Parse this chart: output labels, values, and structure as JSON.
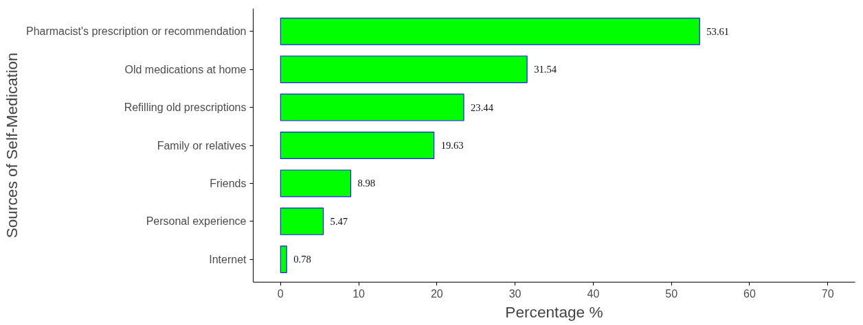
{
  "chart_data": {
    "type": "bar",
    "orientation": "horizontal",
    "xlabel": "Percentage %",
    "ylabel": "Sources of Self-Medication",
    "categories": [
      "Pharmacist's prescription or recommendation",
      "Old medications at home",
      "Refilling old prescriptions",
      "Family or relatives",
      "Friends",
      "Personal experience",
      "Internet"
    ],
    "values": [
      53.61,
      31.54,
      23.44,
      19.63,
      8.98,
      5.47,
      0.78
    ],
    "color": "#00ff00",
    "xlim": [
      -3.5,
      73.5
    ],
    "xticks": [
      0,
      10,
      20,
      30,
      40,
      50,
      60,
      70
    ],
    "grid": false,
    "data_labels": true
  }
}
